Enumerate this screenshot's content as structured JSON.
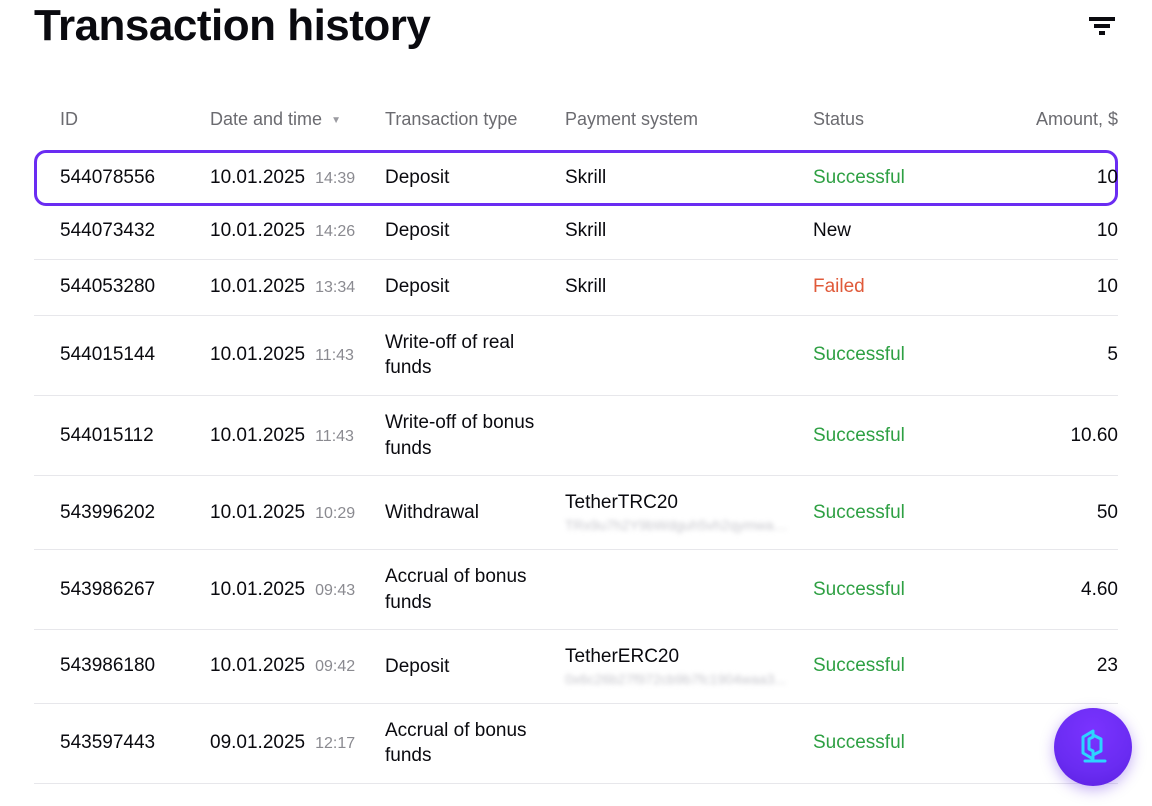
{
  "header": {
    "title": "Transaction history"
  },
  "table": {
    "columns": {
      "id": "ID",
      "datetime": "Date and time",
      "type": "Transaction type",
      "payment": "Payment system",
      "status": "Status",
      "amount": "Amount, $"
    },
    "sort": {
      "column": "datetime",
      "direction": "desc"
    },
    "status_colors": {
      "Successful": "#2ea043",
      "Failed": "#e05a3a",
      "New": "#0a0a0f"
    },
    "highlight_color": "#6a2cf2",
    "rows": [
      {
        "id": "544078556",
        "date": "10.01.2025",
        "time": "14:39",
        "type": "Deposit",
        "payment": "Skrill",
        "payment_sub": "",
        "status": "Successful",
        "amount": "10",
        "highlight": true
      },
      {
        "id": "544073432",
        "date": "10.01.2025",
        "time": "14:26",
        "type": "Deposit",
        "payment": "Skrill",
        "payment_sub": "",
        "status": "New",
        "amount": "10",
        "highlight": false
      },
      {
        "id": "544053280",
        "date": "10.01.2025",
        "time": "13:34",
        "type": "Deposit",
        "payment": "Skrill",
        "payment_sub": "",
        "status": "Failed",
        "amount": "10",
        "highlight": false
      },
      {
        "id": "544015144",
        "date": "10.01.2025",
        "time": "11:43",
        "type": "Write-off of real funds",
        "payment": "",
        "payment_sub": "",
        "status": "Successful",
        "amount": "5",
        "highlight": false
      },
      {
        "id": "544015112",
        "date": "10.01.2025",
        "time": "11:43",
        "type": "Write-off of bonus funds",
        "payment": "",
        "payment_sub": "",
        "status": "Successful",
        "amount": "10.60",
        "highlight": false
      },
      {
        "id": "543996202",
        "date": "10.01.2025",
        "time": "10:29",
        "type": "Withdrawal",
        "payment": "TetherTRC20",
        "payment_sub": "TRx9u7h2Y9bWdguh5vh2qymwaWL...",
        "status": "Successful",
        "amount": "50",
        "highlight": false
      },
      {
        "id": "543986267",
        "date": "10.01.2025",
        "time": "09:43",
        "type": "Accrual of bonus funds",
        "payment": "",
        "payment_sub": "",
        "status": "Successful",
        "amount": "4.60",
        "highlight": false
      },
      {
        "id": "543986180",
        "date": "10.01.2025",
        "time": "09:42",
        "type": "Deposit",
        "payment": "TetherERC20",
        "payment_sub": "0x6c26b27f972cb9b7fc1904waa3...",
        "status": "Successful",
        "amount": "23",
        "highlight": false
      },
      {
        "id": "543597443",
        "date": "09.01.2025",
        "time": "12:17",
        "type": "Accrual of bonus funds",
        "payment": "",
        "payment_sub": "",
        "status": "Successful",
        "amount": "",
        "highlight": false
      }
    ]
  },
  "colors": {
    "background": "#ffffff",
    "text": "#0a0a0f",
    "muted": "#6b6b70",
    "time": "#8a8a90",
    "divider": "#e7e7eb",
    "fab": "#6a2cf2",
    "fab_icon": "#2dd4ff"
  }
}
